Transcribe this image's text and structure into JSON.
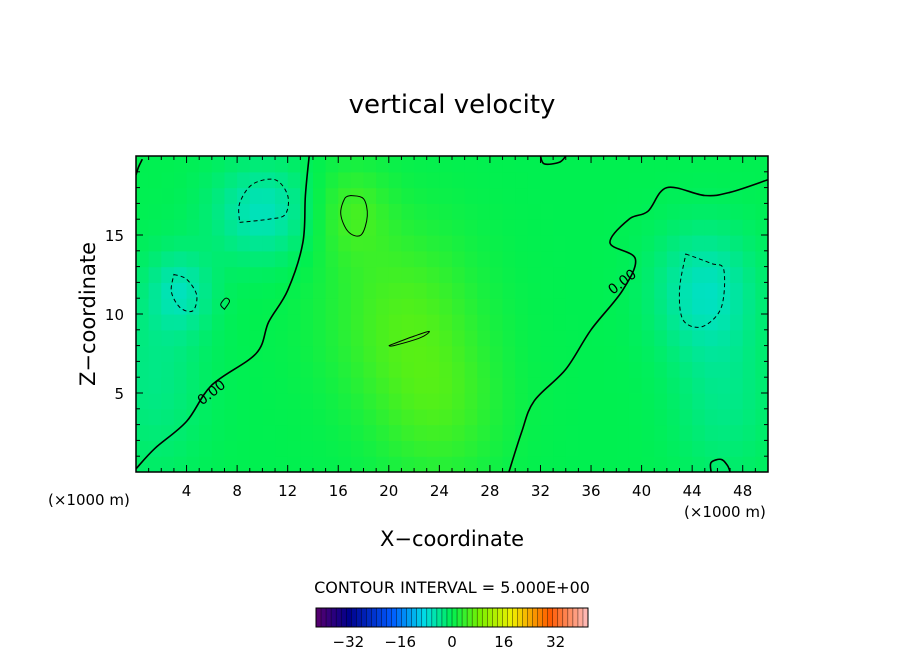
{
  "chart_data": {
    "type": "heatmap",
    "title": "vertical velocity",
    "xlabel": "X−coordinate",
    "ylabel": "Z−coordinate",
    "x_units": "(×1000 m)",
    "y_units": "(×1000 m)",
    "xlim": [
      0,
      50
    ],
    "ylim": [
      0,
      20
    ],
    "x_ticks": [
      4,
      8,
      12,
      16,
      20,
      24,
      28,
      32,
      36,
      40,
      44,
      48
    ],
    "x_tick_labels": [
      "4",
      "8",
      "12",
      "16",
      "20",
      "24",
      "28",
      "32",
      "36",
      "40",
      "44",
      "48"
    ],
    "y_ticks": [
      5,
      10,
      15
    ],
    "y_tick_labels": [
      "5",
      "10",
      "15"
    ],
    "contour_interval_text": "CONTOUR INTERVAL = 5.000E+00",
    "contour_labels": [
      {
        "text": "0.00",
        "x": 6,
        "y": 5
      },
      {
        "text": "0.00",
        "x": 38.5,
        "y": 12
      }
    ],
    "zero_contours": [
      [
        [
          0,
          0.2
        ],
        [
          1.5,
          1.5
        ],
        [
          4,
          3.2
        ],
        [
          6,
          5.5
        ],
        [
          9.5,
          7.5
        ],
        [
          10.5,
          9.5
        ],
        [
          12,
          11.5
        ],
        [
          13.2,
          14.5
        ],
        [
          13.4,
          17.5
        ],
        [
          13.7,
          20
        ]
      ],
      [
        [
          29.5,
          0
        ],
        [
          30.5,
          2.5
        ],
        [
          31.5,
          4.5
        ],
        [
          34,
          6.5
        ],
        [
          36,
          9
        ],
        [
          38.5,
          11.5
        ],
        [
          39.5,
          13.5
        ],
        [
          37.5,
          14.5
        ],
        [
          39,
          16
        ],
        [
          40.5,
          16.5
        ],
        [
          42,
          18
        ],
        [
          45,
          17.5
        ],
        [
          47,
          17.7
        ],
        [
          50,
          18.5
        ]
      ],
      [
        [
          0.5,
          19.8
        ],
        [
          0.2,
          19.3
        ],
        [
          0,
          18.8
        ]
      ],
      [
        [
          32,
          20
        ],
        [
          32.3,
          19.5
        ],
        [
          33.5,
          19.6
        ],
        [
          34,
          20
        ]
      ],
      [
        [
          45.5,
          0
        ],
        [
          45.5,
          0.6
        ],
        [
          46.3,
          0.8
        ],
        [
          46.8,
          0.4
        ],
        [
          47,
          0
        ]
      ]
    ],
    "positive_contours": [
      [
        [
          17,
          17.5
        ],
        [
          18,
          17.3
        ],
        [
          18.3,
          16.2
        ],
        [
          17.8,
          15
        ],
        [
          16.8,
          15.2
        ],
        [
          16.2,
          16.3
        ],
        [
          16.5,
          17.3
        ],
        [
          17,
          17.5
        ]
      ],
      [
        [
          20,
          8
        ],
        [
          22,
          8.6
        ],
        [
          23.2,
          8.9
        ],
        [
          22.5,
          8.5
        ],
        [
          20.4,
          8.0
        ],
        [
          20,
          8
        ]
      ],
      [
        [
          7,
          10.3
        ],
        [
          7.4,
          10.8
        ],
        [
          7.1,
          11.0
        ],
        [
          6.7,
          10.6
        ],
        [
          7,
          10.3
        ]
      ]
    ],
    "negative_contours": [
      [
        [
          8.2,
          15.8
        ],
        [
          10.5,
          16.0
        ],
        [
          11.8,
          16.3
        ],
        [
          12,
          17.5
        ],
        [
          11,
          18.5
        ],
        [
          9.2,
          18.2
        ],
        [
          8.2,
          17
        ],
        [
          8.2,
          15.8
        ]
      ],
      [
        [
          3,
          12.5
        ],
        [
          4,
          12.2
        ],
        [
          4.8,
          11.2
        ],
        [
          4.5,
          10.2
        ],
        [
          3.5,
          10.4
        ],
        [
          2.8,
          11.4
        ],
        [
          3,
          12.5
        ]
      ],
      [
        [
          43.5,
          13.8
        ],
        [
          45.5,
          13.2
        ],
        [
          46.5,
          12.8
        ],
        [
          46.3,
          10.4
        ],
        [
          44.8,
          9.2
        ],
        [
          43.3,
          9.6
        ],
        [
          43.0,
          11.5
        ],
        [
          43.5,
          13.8
        ]
      ]
    ],
    "field_features": [
      {
        "x": 10,
        "y": 16.5,
        "value": -6,
        "sx": 4,
        "sy": 3
      },
      {
        "x": 3.5,
        "y": 11.5,
        "value": -5,
        "sx": 2.5,
        "sy": 2.5
      },
      {
        "x": 1.5,
        "y": 6,
        "value": -3,
        "sx": 4,
        "sy": 6
      },
      {
        "x": 45,
        "y": 11.5,
        "value": -6,
        "sx": 4,
        "sy": 4
      },
      {
        "x": 46.5,
        "y": 4.5,
        "value": -3,
        "sx": 4,
        "sy": 5
      },
      {
        "x": 21,
        "y": 10,
        "value": 5,
        "sx": 6,
        "sy": 6
      },
      {
        "x": 17,
        "y": 16.5,
        "value": 4,
        "sx": 3,
        "sy": 3
      },
      {
        "x": 24,
        "y": 4,
        "value": 4,
        "sx": 5,
        "sy": 5
      }
    ],
    "colorbar": {
      "min": -42,
      "max": 42,
      "ticks": [
        -32,
        -16,
        0,
        16,
        32
      ],
      "tick_labels": [
        "−32",
        "−16",
        "0",
        "16",
        "32"
      ],
      "colormap": "rainbow"
    }
  }
}
